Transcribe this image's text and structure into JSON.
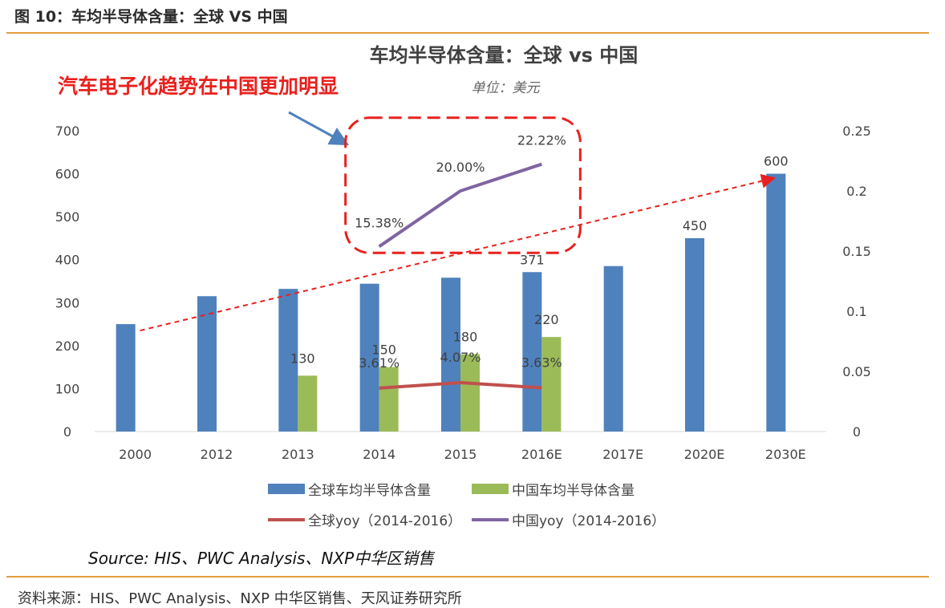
{
  "header": {
    "figure_title": "图 10：车均半导体含量：全球 VS 中国"
  },
  "footer": {
    "source_note": "Source: HIS、PWC Analysis、NXP中华区销售",
    "source": "资料来源：HIS、PWC Analysis、NXP 中华区销售、天风证券研究所"
  },
  "colors": {
    "global_bar": "#4f81bd",
    "china_bar": "#9bbb59",
    "global_yoy": "#c0504d",
    "china_yoy": "#8064a2",
    "annotation": "#e8211e",
    "arrow": "#4f81bd",
    "rule": "#e49c3c"
  },
  "chart_data": {
    "type": "bar",
    "title": "车均半导体含量：全球 vs 中国",
    "unit_label": "单位：美元",
    "annotation": "汽车电子化趋势在中国更加明显",
    "categories": [
      "2000",
      "2012",
      "2013",
      "2014",
      "2015",
      "2016E",
      "2017E",
      "2020E",
      "2030E"
    ],
    "y_left": {
      "min": 0,
      "max": 700,
      "ticks": [
        "0",
        "100",
        "200",
        "300",
        "400",
        "500",
        "600",
        "700"
      ]
    },
    "y_right": {
      "min": 0,
      "max": 0.25,
      "ticks": [
        "0",
        "0.05",
        "0.1",
        "0.15",
        "0.2",
        "0.25"
      ]
    },
    "series": [
      {
        "name": "全球车均半导体含量",
        "type": "bar",
        "axis": "left",
        "values": [
          250,
          315,
          332,
          344,
          358,
          371,
          385,
          450,
          600
        ],
        "labels": [
          "",
          "",
          "",
          "",
          "",
          "371",
          "",
          "450",
          "600"
        ]
      },
      {
        "name": "中国车均半导体含量",
        "type": "bar",
        "axis": "left",
        "values": [
          null,
          null,
          130,
          150,
          180,
          220,
          null,
          null,
          null
        ],
        "labels": [
          "",
          "",
          "130",
          "150",
          "180",
          "220",
          "",
          "",
          ""
        ]
      },
      {
        "name": "全球yoy（2014-2016）",
        "type": "line",
        "axis": "right",
        "values": [
          null,
          null,
          null,
          0.0361,
          0.0407,
          0.0363,
          null,
          null,
          null
        ],
        "labels": [
          "",
          "",
          "",
          "3.61%",
          "4.07%",
          "3.63%",
          "",
          "",
          ""
        ]
      },
      {
        "name": "中国yoy（2014-2016）",
        "type": "line",
        "axis": "right",
        "values": [
          null,
          null,
          null,
          0.1538,
          0.2,
          0.2222,
          null,
          null,
          null
        ],
        "labels": [
          "",
          "",
          "",
          "15.38%",
          "20.00%",
          "22.22%",
          "",
          "",
          ""
        ]
      }
    ],
    "trend_line": {
      "from": {
        "category": "2000",
        "value": 235
      },
      "to": {
        "category": "2030E",
        "value": 590
      }
    },
    "highlight_box_around": "中国yoy（2014-2016）"
  }
}
